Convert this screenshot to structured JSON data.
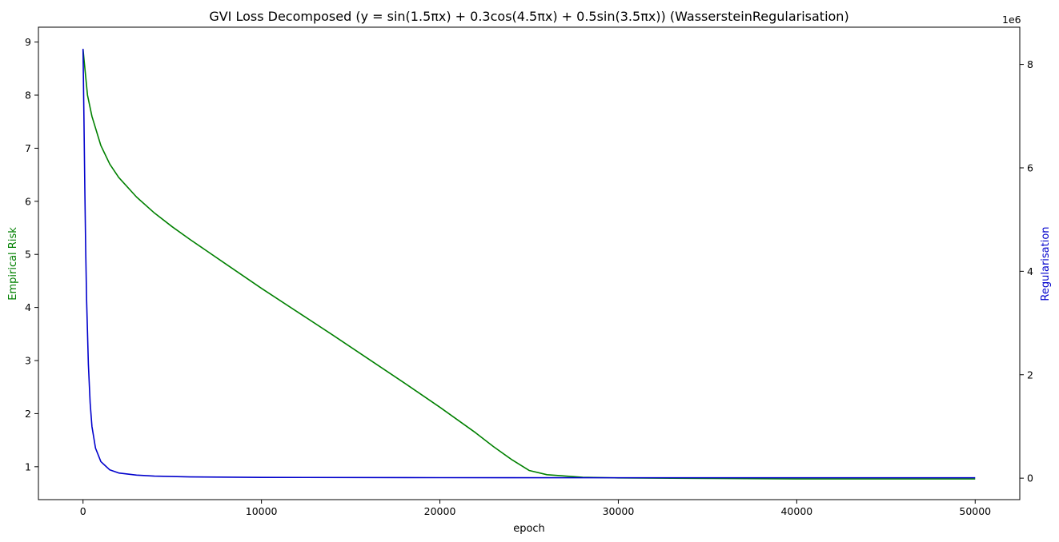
{
  "chart_data": {
    "type": "line",
    "title": "GVI Loss Decomposed ($y=\\sin(1.5\\pi x)+0.3\\cos(4.5\\pi x)+0.5\\sin(3.5\\pi x)$) (WassersteinRegularisation)",
    "title_rendered": "GVI Loss Decomposed (y = sin(1.5πx) + 0.3cos(4.5πx) + 0.5sin(3.5πx)) (WassersteinRegularisation)",
    "xlabel": "epoch",
    "ylabel_left": "Empirical Risk",
    "ylabel_right": "Regularisation",
    "right_axis_offset_label": "1e6",
    "xlim": [
      -2500,
      52500
    ],
    "ylim_left": [
      0.38,
      9.28
    ],
    "ylim_right": [
      -415000,
      8720000
    ],
    "x_ticks": [
      0,
      10000,
      20000,
      30000,
      40000,
      50000
    ],
    "x_tick_labels": [
      "0",
      "10000",
      "20000",
      "30000",
      "40000",
      "50000"
    ],
    "y_left_ticks": [
      1,
      2,
      3,
      4,
      5,
      6,
      7,
      8,
      9
    ],
    "y_left_tick_labels": [
      "1",
      "2",
      "3",
      "4",
      "5",
      "6",
      "7",
      "8",
      "9"
    ],
    "y_right_ticks": [
      0,
      2000000,
      4000000,
      6000000,
      8000000
    ],
    "y_right_tick_labels": [
      "0",
      "2",
      "4",
      "6",
      "8"
    ],
    "grid": false,
    "series": [
      {
        "name": "Empirical Risk",
        "axis": "left",
        "color": "#008000",
        "x": [
          0,
          250,
          500,
          1000,
          1500,
          2000,
          3000,
          4000,
          5000,
          6000,
          8000,
          10000,
          12000,
          14000,
          16000,
          18000,
          20000,
          22000,
          23000,
          24000,
          25000,
          26000,
          28000,
          30000,
          35000,
          40000,
          45000,
          50000
        ],
        "y": [
          8.86,
          8.0,
          7.6,
          7.05,
          6.7,
          6.45,
          6.08,
          5.78,
          5.52,
          5.28,
          4.82,
          4.36,
          3.92,
          3.48,
          3.03,
          2.58,
          2.12,
          1.64,
          1.38,
          1.14,
          0.93,
          0.85,
          0.8,
          0.79,
          0.78,
          0.77,
          0.77,
          0.77
        ]
      },
      {
        "name": "Regularisation",
        "axis": "right",
        "color": "#0000cc",
        "x": [
          0,
          50,
          100,
          150,
          200,
          300,
          400,
          500,
          700,
          1000,
          1500,
          2000,
          3000,
          4000,
          6000,
          10000,
          20000,
          30000,
          40000,
          50000
        ],
        "y": [
          8300000,
          7000000,
          5600000,
          4400000,
          3450000,
          2200000,
          1450000,
          1000000,
          580000,
          320000,
          160000,
          100000,
          60000,
          40000,
          25000,
          15000,
          10000,
          8000,
          8000,
          8000
        ]
      }
    ]
  }
}
